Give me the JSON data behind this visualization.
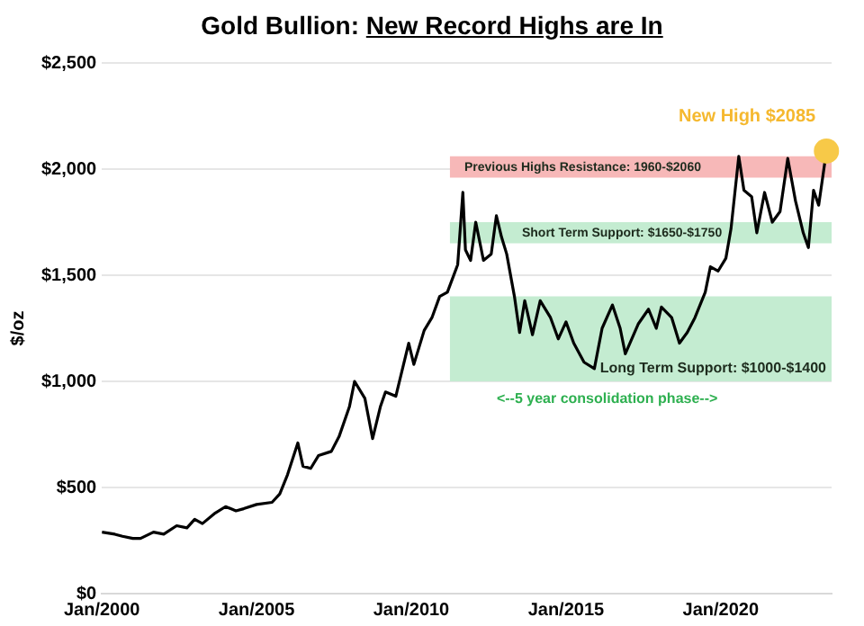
{
  "chart_data": {
    "type": "line",
    "title": "Gold Bullion: New Record Highs are In",
    "ylabel": "$/oz",
    "x": [
      "2000-01",
      "2000-06",
      "2000-09",
      "2001-01",
      "2001-04",
      "2001-09",
      "2002-01",
      "2002-06",
      "2002-10",
      "2003-01",
      "2003-04",
      "2003-09",
      "2004-01",
      "2004-05",
      "2004-08",
      "2005-01",
      "2005-07",
      "2005-10",
      "2006-01",
      "2006-05",
      "2006-07",
      "2006-10",
      "2007-01",
      "2007-06",
      "2007-09",
      "2008-01",
      "2008-03",
      "2008-07",
      "2008-10",
      "2009-01",
      "2009-03",
      "2009-07",
      "2009-12",
      "2010-02",
      "2010-06",
      "2010-09",
      "2010-12",
      "2011-03",
      "2011-07",
      "2011-09",
      "2011-10",
      "2011-12",
      "2012-02",
      "2012-05",
      "2012-08",
      "2012-10",
      "2012-12",
      "2013-02",
      "2013-05",
      "2013-07",
      "2013-09",
      "2013-12",
      "2014-03",
      "2014-07",
      "2014-10",
      "2015-01",
      "2015-04",
      "2015-08",
      "2015-12",
      "2016-03",
      "2016-07",
      "2016-10",
      "2016-12",
      "2017-05",
      "2017-09",
      "2017-12",
      "2018-02",
      "2018-06",
      "2018-09",
      "2018-12",
      "2019-03",
      "2019-07",
      "2019-09",
      "2019-12",
      "2020-03",
      "2020-05",
      "2020-08",
      "2020-10",
      "2021-01",
      "2021-03",
      "2021-06",
      "2021-09",
      "2021-12",
      "2022-03",
      "2022-06",
      "2022-09",
      "2022-11",
      "2023-01",
      "2023-03",
      "2023-05",
      "2023-06"
    ],
    "series": [
      {
        "color": "#000000",
        "values": [
          290,
          280,
          270,
          260,
          260,
          290,
          280,
          320,
          310,
          350,
          330,
          380,
          410,
          390,
          400,
          420,
          430,
          470,
          560,
          710,
          600,
          590,
          650,
          670,
          740,
          880,
          1000,
          920,
          730,
          880,
          950,
          930,
          1180,
          1080,
          1240,
          1300,
          1400,
          1420,
          1550,
          1890,
          1620,
          1570,
          1750,
          1570,
          1600,
          1780,
          1680,
          1600,
          1400,
          1230,
          1380,
          1220,
          1380,
          1300,
          1200,
          1280,
          1180,
          1090,
          1060,
          1250,
          1360,
          1250,
          1130,
          1270,
          1340,
          1250,
          1350,
          1300,
          1180,
          1230,
          1300,
          1420,
          1540,
          1520,
          1580,
          1720,
          2060,
          1900,
          1870,
          1700,
          1890,
          1750,
          1800,
          2050,
          1850,
          1700,
          1630,
          1900,
          1830,
          2000,
          2085
        ]
      }
    ],
    "xlim": [
      "2000-01",
      "2023-08"
    ],
    "xticks": [
      {
        "value": "2000-01",
        "label": "Jan/2000"
      },
      {
        "value": "2005-01",
        "label": "Jan/2005"
      },
      {
        "value": "2010-01",
        "label": "Jan/2010"
      },
      {
        "value": "2015-01",
        "label": "Jan/2015"
      },
      {
        "value": "2020-01",
        "label": "Jan/2020"
      }
    ],
    "ylim": [
      0,
      2500
    ],
    "yticks": [
      {
        "value": 0,
        "label": "$0"
      },
      {
        "value": 500,
        "label": "$500"
      },
      {
        "value": 1000,
        "label": "$1,000"
      },
      {
        "value": 1500,
        "label": "$1,500"
      },
      {
        "value": 2000,
        "label": "$2,000"
      },
      {
        "value": 2500,
        "label": "$2,500"
      }
    ],
    "grid": "y",
    "legend": false,
    "marker": "none",
    "line_style": "solid",
    "bands": [
      {
        "axis": "y",
        "from": 1960,
        "to": 2060,
        "label": "Previous Highs Resistance: 1960-$2060",
        "color": "#f7b8b8"
      },
      {
        "axis": "y",
        "from": 1650,
        "to": 1750,
        "label": "Short Term Support: $1650-$1750",
        "color": "#c4ecd1"
      },
      {
        "axis": "y",
        "from": 1000,
        "to": 1400,
        "label": "Long Term Support: $1000-$1400",
        "color": "#c4ecd1"
      }
    ],
    "annotations": [
      {
        "text": "New High $2085",
        "x": "2023-06",
        "y": 2085
      },
      "<--5 year consolidation phase-->"
    ]
  }
}
